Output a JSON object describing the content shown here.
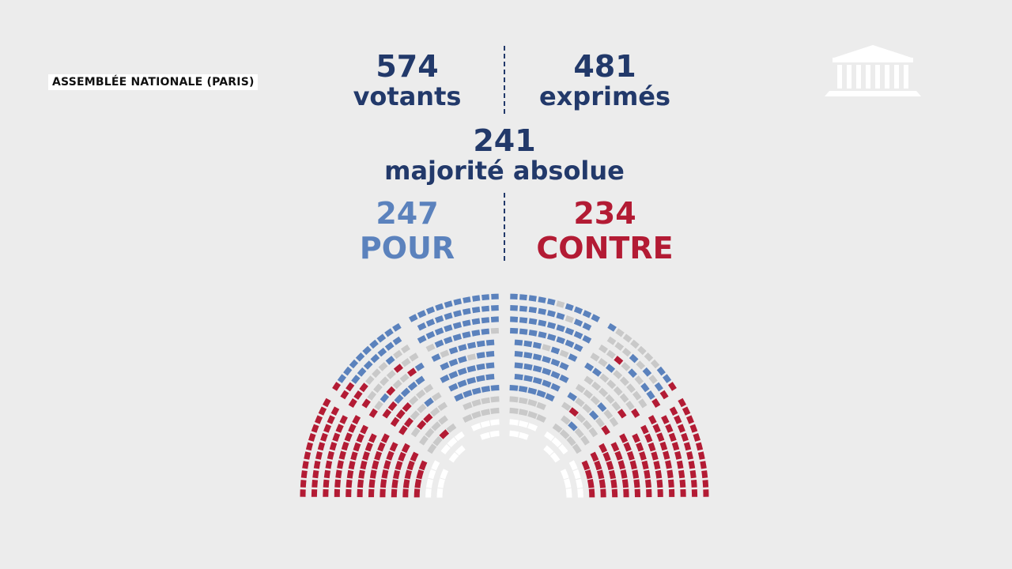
{
  "channel_label": "ASSEMBLÉE NATIONALE (PARIS)",
  "logo": "assemblee-nationale-building-icon",
  "colors": {
    "text": "#22396a",
    "pour": "#5b82bd",
    "contre": "#b31b34",
    "abstention": "#c9c9c9",
    "absent": "#ffffff"
  },
  "chart_data": {
    "type": "hemicycle",
    "votants": {
      "value": "574",
      "label": "votants"
    },
    "exprimes": {
      "value": "481",
      "label": "exprimés"
    },
    "majorite": {
      "value": "241",
      "label": "majorité absolue"
    },
    "pour": {
      "value": "247",
      "label": "POUR"
    },
    "contre": {
      "value": "234",
      "label": "CONTRE"
    }
  }
}
